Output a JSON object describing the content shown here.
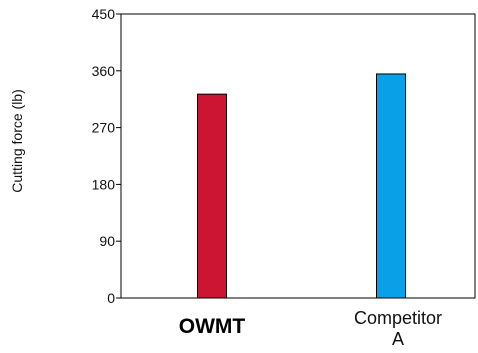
{
  "chart_data": {
    "type": "bar",
    "categories": [
      "OWMT",
      "Competitor A"
    ],
    "category_lines": [
      [
        "OWMT"
      ],
      [
        "Competitor",
        "A"
      ]
    ],
    "category_bold": [
      true,
      false
    ],
    "values": [
      323,
      355
    ],
    "colors": [
      "#cc1533",
      "#0aa0e8"
    ],
    "ylabel": "Cutting force (lb)",
    "xlabel": "",
    "ylim": [
      0,
      450
    ],
    "yticks": [
      0,
      90,
      180,
      270,
      360,
      450
    ],
    "grid": false,
    "legend": "none"
  }
}
